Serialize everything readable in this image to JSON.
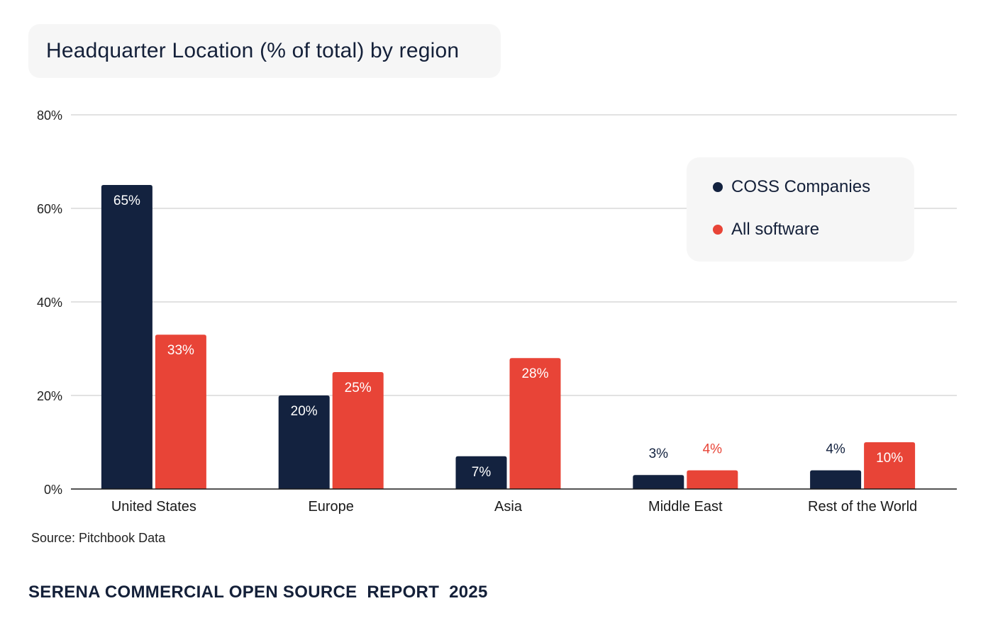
{
  "title": "Headquarter Location (% of total) by region",
  "source": "Source: Pitchbook Data",
  "footer": "SERENA COMMERCIAL OPEN SOURCE  REPORT  2025",
  "colors": {
    "coss": "#13223f",
    "all": "#e84437",
    "grid": "#d0d0d0",
    "axis": "#1a1a1a",
    "label_light": "#ffffff"
  },
  "chart_data": {
    "type": "bar",
    "title": "Headquarter Location (% of total) by region",
    "categories": [
      "United States",
      "Europe",
      "Asia",
      "Middle East",
      "Rest of the World"
    ],
    "series": [
      {
        "name": "COSS Companies",
        "values": [
          65,
          20,
          7,
          3,
          4
        ],
        "labels": [
          "65%",
          "20%",
          "7%",
          "3%",
          "4%"
        ]
      },
      {
        "name": "All software",
        "values": [
          33,
          25,
          28,
          4,
          10
        ],
        "labels": [
          "33%",
          "25%",
          "28%",
          "4%",
          "10%"
        ]
      }
    ],
    "ylim": [
      0,
      80
    ],
    "yticks": [
      0,
      20,
      40,
      60,
      80
    ],
    "ytick_labels": [
      "0%",
      "20%",
      "40%",
      "60%",
      "80%"
    ],
    "grid": true,
    "legend": "top-right"
  }
}
